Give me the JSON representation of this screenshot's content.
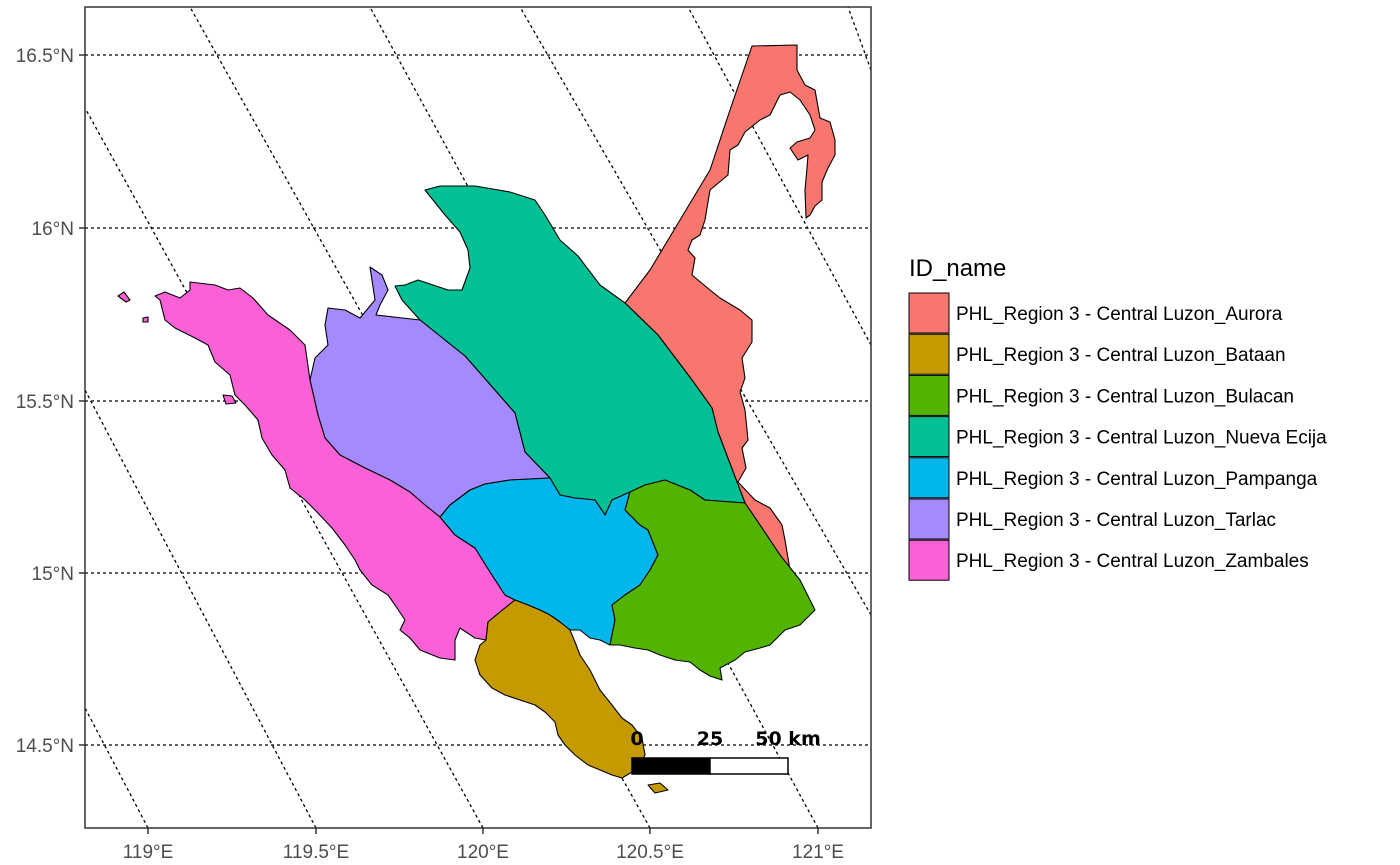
{
  "legend": {
    "title": "ID_name",
    "items": [
      {
        "label": "PHL_Region 3 - Central Luzon_Aurora",
        "color": "#F8766D"
      },
      {
        "label": "PHL_Region 3 - Central Luzon_Bataan",
        "color": "#C49A00"
      },
      {
        "label": "PHL_Region 3 - Central Luzon_Bulacan",
        "color": "#53B400"
      },
      {
        "label": "PHL_Region 3 - Central Luzon_Nueva Ecija",
        "color": "#00C094"
      },
      {
        "label": "PHL_Region 3 - Central Luzon_Pampanga",
        "color": "#00B6EB"
      },
      {
        "label": "PHL_Region 3 - Central Luzon_Tarlac",
        "color": "#A58AFF"
      },
      {
        "label": "PHL_Region 3 - Central Luzon_Zambales",
        "color": "#FB61D7"
      }
    ]
  },
  "axes": {
    "x_ticks": [
      "119°E",
      "119.5°E",
      "120°E",
      "120.5°E",
      "121°E"
    ],
    "y_ticks": [
      "16.5°N",
      "16°N",
      "15.5°N",
      "15°N",
      "14.5°N"
    ]
  },
  "scale_bar": {
    "labels": [
      "0",
      "25",
      "50 km"
    ]
  }
}
